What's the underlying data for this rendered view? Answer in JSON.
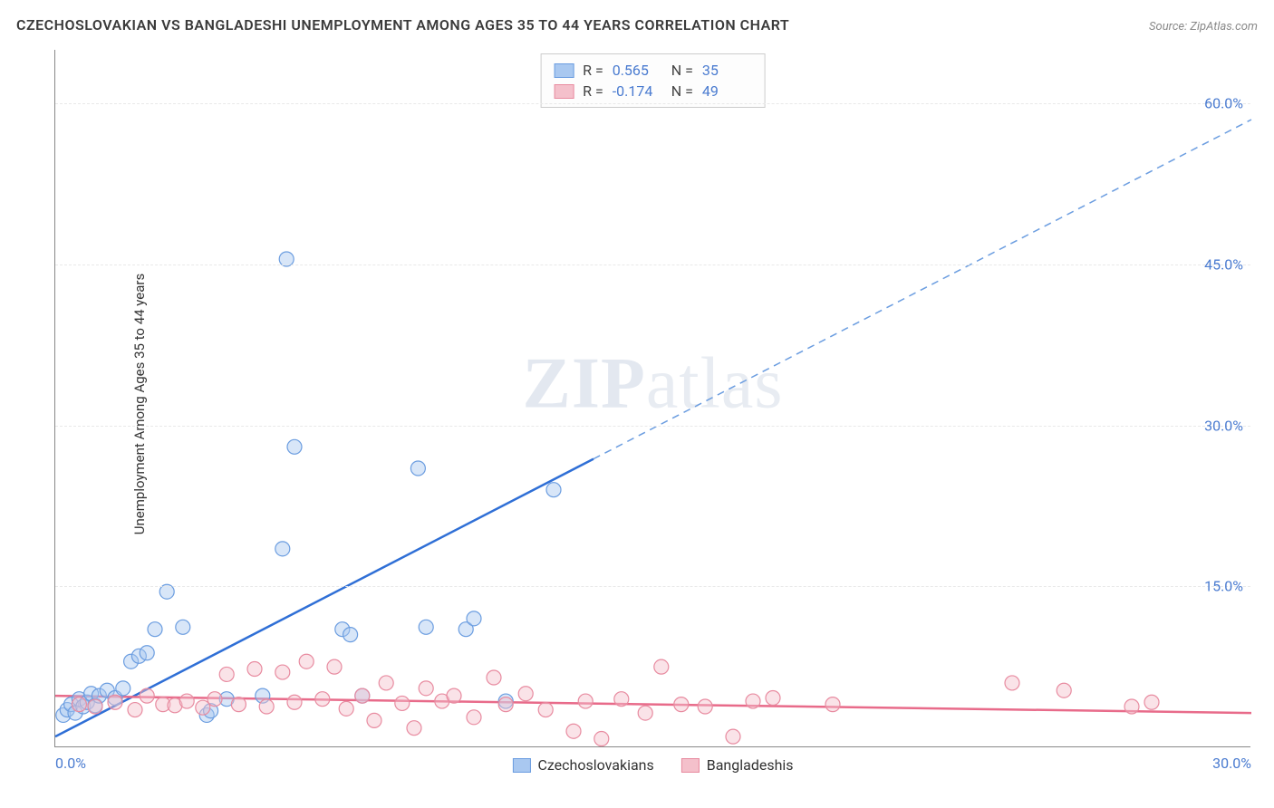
{
  "title": "CZECHOSLOVAKIAN VS BANGLADESHI UNEMPLOYMENT AMONG AGES 35 TO 44 YEARS CORRELATION CHART",
  "source": "Source: ZipAtlas.com",
  "ylabel": "Unemployment Among Ages 35 to 44 years",
  "watermark": "ZIPatlas",
  "chart": {
    "type": "scatter",
    "xlim": [
      0,
      30
    ],
    "ylim": [
      0,
      65
    ],
    "x_ticks": [
      {
        "v": 0,
        "label": "0.0%"
      },
      {
        "v": 30,
        "label": "30.0%"
      }
    ],
    "y_ticks_right": [
      {
        "v": 15,
        "label": "15.0%"
      },
      {
        "v": 30,
        "label": "30.0%"
      },
      {
        "v": 45,
        "label": "45.0%"
      },
      {
        "v": 60,
        "label": "60.0%"
      }
    ],
    "grid_color": "#e8e8e8",
    "axis_color": "#888888",
    "tick_label_color": "#4a7bd0",
    "background": "#ffffff",
    "marker_radius": 8,
    "marker_opacity": 0.45,
    "line_width": 2.5,
    "series": [
      {
        "name": "Czechoslovakians",
        "fill": "#a9c8f0",
        "stroke": "#6b9de0",
        "trend_color": "#2f6fd6",
        "trend_dashed": "#6b9de0",
        "R": "0.565",
        "N": "35",
        "trend": {
          "x1": 0,
          "y1": 1.0,
          "x2": 30,
          "y2": 58.5,
          "solid_until_x": 13.5
        },
        "points": [
          [
            0.2,
            3.0
          ],
          [
            0.3,
            3.5
          ],
          [
            0.4,
            4.0
          ],
          [
            0.5,
            3.2
          ],
          [
            0.6,
            4.5
          ],
          [
            0.7,
            3.8
          ],
          [
            0.8,
            4.2
          ],
          [
            0.9,
            5.0
          ],
          [
            1.0,
            3.9
          ],
          [
            1.1,
            4.8
          ],
          [
            1.3,
            5.3
          ],
          [
            1.5,
            4.6
          ],
          [
            1.7,
            5.5
          ],
          [
            1.9,
            8.0
          ],
          [
            2.1,
            8.5
          ],
          [
            2.3,
            8.8
          ],
          [
            2.5,
            11.0
          ],
          [
            2.8,
            14.5
          ],
          [
            3.2,
            11.2
          ],
          [
            3.8,
            3.0
          ],
          [
            3.9,
            3.4
          ],
          [
            4.3,
            4.5
          ],
          [
            5.2,
            4.8
          ],
          [
            5.7,
            18.5
          ],
          [
            5.8,
            45.5
          ],
          [
            6.0,
            28.0
          ],
          [
            7.2,
            11.0
          ],
          [
            7.4,
            10.5
          ],
          [
            7.7,
            4.8
          ],
          [
            9.1,
            26.0
          ],
          [
            9.3,
            11.2
          ],
          [
            10.3,
            11.0
          ],
          [
            10.5,
            12.0
          ],
          [
            11.3,
            4.3
          ],
          [
            12.5,
            24.0
          ]
        ]
      },
      {
        "name": "Bangladeshis",
        "fill": "#f4c0cb",
        "stroke": "#e88ba0",
        "trend_color": "#e86b8a",
        "trend_dashed": "#e86b8a",
        "R": "-0.174",
        "N": "49",
        "trend": {
          "x1": 0,
          "y1": 4.8,
          "x2": 30,
          "y2": 3.2,
          "solid_until_x": 30
        },
        "points": [
          [
            0.6,
            4.0
          ],
          [
            1.0,
            3.8
          ],
          [
            1.5,
            4.2
          ],
          [
            2.0,
            3.5
          ],
          [
            2.3,
            4.8
          ],
          [
            2.7,
            4.0
          ],
          [
            3.0,
            3.9
          ],
          [
            3.3,
            4.3
          ],
          [
            3.7,
            3.7
          ],
          [
            4.0,
            4.5
          ],
          [
            4.3,
            6.8
          ],
          [
            4.6,
            4.0
          ],
          [
            5.0,
            7.3
          ],
          [
            5.3,
            3.8
          ],
          [
            5.7,
            7.0
          ],
          [
            6.0,
            4.2
          ],
          [
            6.3,
            8.0
          ],
          [
            6.7,
            4.5
          ],
          [
            7.0,
            7.5
          ],
          [
            7.3,
            3.6
          ],
          [
            7.7,
            4.8
          ],
          [
            8.0,
            2.5
          ],
          [
            8.3,
            6.0
          ],
          [
            8.7,
            4.1
          ],
          [
            9.0,
            1.8
          ],
          [
            9.3,
            5.5
          ],
          [
            9.7,
            4.3
          ],
          [
            10.0,
            4.8
          ],
          [
            10.5,
            2.8
          ],
          [
            11.0,
            6.5
          ],
          [
            11.3,
            4.0
          ],
          [
            11.8,
            5.0
          ],
          [
            12.3,
            3.5
          ],
          [
            13.0,
            1.5
          ],
          [
            13.3,
            4.3
          ],
          [
            13.7,
            0.8
          ],
          [
            14.2,
            4.5
          ],
          [
            14.8,
            3.2
          ],
          [
            15.2,
            7.5
          ],
          [
            15.7,
            4.0
          ],
          [
            16.3,
            3.8
          ],
          [
            17.0,
            1.0
          ],
          [
            17.5,
            4.3
          ],
          [
            18.0,
            4.6
          ],
          [
            19.5,
            4.0
          ],
          [
            24.0,
            6.0
          ],
          [
            25.3,
            5.3
          ],
          [
            27.0,
            3.8
          ],
          [
            27.5,
            4.2
          ]
        ]
      }
    ]
  },
  "stats_box": {
    "rows": [
      {
        "swatch_fill": "#a9c8f0",
        "swatch_stroke": "#6b9de0",
        "r_label": "R =",
        "r": "0.565",
        "n_label": "N =",
        "n": "35"
      },
      {
        "swatch_fill": "#f4c0cb",
        "swatch_stroke": "#e88ba0",
        "r_label": "R =",
        "r": "-0.174",
        "n_label": "N =",
        "n": "49"
      }
    ]
  },
  "bottom_legend": [
    {
      "swatch_fill": "#a9c8f0",
      "swatch_stroke": "#6b9de0",
      "label": "Czechoslovakians"
    },
    {
      "swatch_fill": "#f4c0cb",
      "swatch_stroke": "#e88ba0",
      "label": "Bangladeshis"
    }
  ]
}
